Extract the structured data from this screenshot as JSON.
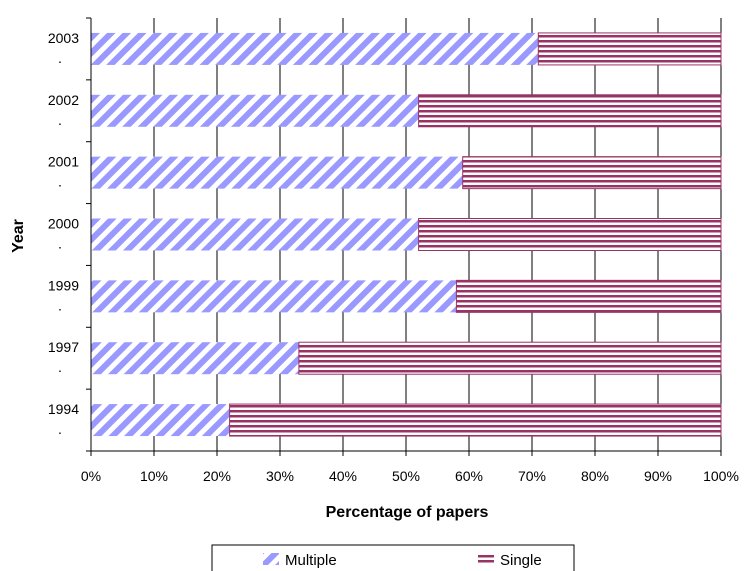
{
  "chart_data": {
    "type": "bar",
    "orientation": "horizontal",
    "stacked": "percent",
    "categories": [
      "2003",
      "2002",
      "2001",
      "2000",
      "1999",
      "1997",
      "1994"
    ],
    "series": [
      {
        "name": "Multiple",
        "values": [
          71,
          52,
          59,
          52,
          58,
          33,
          22
        ],
        "color": "#9999ff",
        "pattern": "diagonal-stripes"
      },
      {
        "name": "Single",
        "values": [
          29,
          48,
          41,
          48,
          42,
          67,
          78
        ],
        "color": "#993366",
        "pattern": "horizontal-stripes"
      }
    ],
    "xlabel": "Percentage of papers",
    "ylabel": "Year",
    "xlim": [
      0,
      100
    ],
    "xticks": [
      "0%",
      "10%",
      "20%",
      "30%",
      "40%",
      "50%",
      "60%",
      "70%",
      "80%",
      "90%",
      "100%"
    ],
    "category_suffix": ".",
    "grid": "vertical",
    "legend_position": "bottom"
  }
}
